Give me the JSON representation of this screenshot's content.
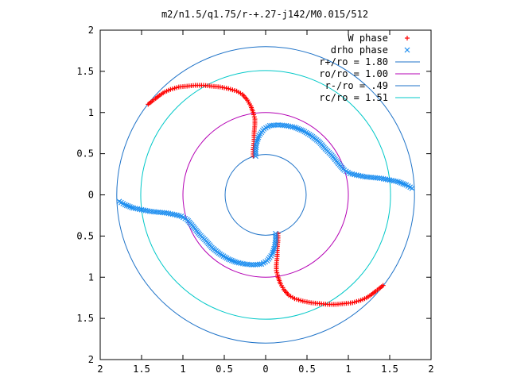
{
  "chart_data": {
    "type": "scatter",
    "title": "m2/n1.5/q1.75/r-+.27-j142/M0.015/512",
    "xlabel": "",
    "ylabel": "",
    "xlim": [
      -2,
      2
    ],
    "ylim": [
      -2,
      2
    ],
    "x_tick_labels": [
      "2",
      "1.5",
      "1",
      "0.5",
      "0",
      "0.5",
      "1",
      "1.5",
      "2"
    ],
    "y_tick_labels": [
      "2",
      "1.5",
      "1",
      "0.5",
      "0",
      "0.5",
      "1",
      "1.5",
      "2"
    ],
    "grid": false,
    "legend_position": "top-right",
    "series": [
      {
        "name": "W phase",
        "marker": "plus",
        "color": "#ff0000",
        "points": [
          [
            -0.15,
            0.47
          ],
          [
            -0.15,
            0.55
          ],
          [
            -0.14,
            0.65
          ],
          [
            -0.14,
            0.75
          ],
          [
            -0.13,
            0.85
          ],
          [
            -0.13,
            0.92
          ],
          [
            -0.15,
            1.0
          ],
          [
            -0.18,
            1.08
          ],
          [
            -0.22,
            1.15
          ],
          [
            -0.28,
            1.22
          ],
          [
            -0.35,
            1.26
          ],
          [
            -0.45,
            1.29
          ],
          [
            -0.55,
            1.31
          ],
          [
            -0.65,
            1.32
          ],
          [
            -0.75,
            1.33
          ],
          [
            -0.85,
            1.33
          ],
          [
            -0.95,
            1.32
          ],
          [
            -1.05,
            1.31
          ],
          [
            -1.15,
            1.28
          ],
          [
            -1.22,
            1.25
          ],
          [
            -1.28,
            1.21
          ],
          [
            -1.33,
            1.17
          ],
          [
            -1.37,
            1.14
          ],
          [
            -1.42,
            1.1
          ],
          [
            0.15,
            -0.47
          ],
          [
            0.15,
            -0.55
          ],
          [
            0.14,
            -0.65
          ],
          [
            0.14,
            -0.75
          ],
          [
            0.13,
            -0.85
          ],
          [
            0.13,
            -0.92
          ],
          [
            0.15,
            -1.0
          ],
          [
            0.18,
            -1.08
          ],
          [
            0.22,
            -1.15
          ],
          [
            0.28,
            -1.22
          ],
          [
            0.35,
            -1.26
          ],
          [
            0.45,
            -1.29
          ],
          [
            0.55,
            -1.31
          ],
          [
            0.65,
            -1.32
          ],
          [
            0.75,
            -1.33
          ],
          [
            0.85,
            -1.33
          ],
          [
            0.95,
            -1.32
          ],
          [
            1.05,
            -1.31
          ],
          [
            1.15,
            -1.28
          ],
          [
            1.22,
            -1.25
          ],
          [
            1.28,
            -1.21
          ],
          [
            1.33,
            -1.17
          ],
          [
            1.37,
            -1.14
          ],
          [
            1.42,
            -1.1
          ]
        ]
      },
      {
        "name": "drho phase",
        "marker": "cross",
        "color": "#1f8ff0",
        "points": [
          [
            -0.12,
            0.47
          ],
          [
            -0.12,
            0.55
          ],
          [
            -0.11,
            0.63
          ],
          [
            -0.08,
            0.72
          ],
          [
            -0.02,
            0.8
          ],
          [
            0.05,
            0.84
          ],
          [
            0.15,
            0.85
          ],
          [
            0.25,
            0.84
          ],
          [
            0.35,
            0.82
          ],
          [
            0.45,
            0.78
          ],
          [
            0.55,
            0.72
          ],
          [
            0.65,
            0.64
          ],
          [
            0.72,
            0.56
          ],
          [
            0.8,
            0.48
          ],
          [
            0.88,
            0.38
          ],
          [
            0.95,
            0.3
          ],
          [
            1.02,
            0.26
          ],
          [
            1.1,
            0.24
          ],
          [
            1.2,
            0.22
          ],
          [
            1.3,
            0.21
          ],
          [
            1.4,
            0.2
          ],
          [
            1.5,
            0.18
          ],
          [
            1.6,
            0.16
          ],
          [
            1.7,
            0.12
          ],
          [
            1.77,
            0.08
          ],
          [
            0.12,
            -0.47
          ],
          [
            0.12,
            -0.55
          ],
          [
            0.11,
            -0.63
          ],
          [
            0.08,
            -0.72
          ],
          [
            0.02,
            -0.8
          ],
          [
            -0.05,
            -0.84
          ],
          [
            -0.15,
            -0.85
          ],
          [
            -0.25,
            -0.84
          ],
          [
            -0.35,
            -0.82
          ],
          [
            -0.45,
            -0.78
          ],
          [
            -0.55,
            -0.72
          ],
          [
            -0.65,
            -0.64
          ],
          [
            -0.72,
            -0.56
          ],
          [
            -0.8,
            -0.48
          ],
          [
            -0.88,
            -0.38
          ],
          [
            -0.95,
            -0.3
          ],
          [
            -1.02,
            -0.26
          ],
          [
            -1.1,
            -0.24
          ],
          [
            -1.2,
            -0.22
          ],
          [
            -1.3,
            -0.21
          ],
          [
            -1.4,
            -0.2
          ],
          [
            -1.5,
            -0.18
          ],
          [
            -1.6,
            -0.16
          ],
          [
            -1.7,
            -0.12
          ],
          [
            -1.77,
            -0.08
          ]
        ]
      },
      {
        "name": "r+/ro = 1.80",
        "type": "circle",
        "radius": 1.8,
        "color": "#1f73c8"
      },
      {
        "name": "ro/ro = 1.00",
        "type": "circle",
        "radius": 1.0,
        "color": "#b400b4"
      },
      {
        "name": "r-/ro = .49",
        "type": "circle",
        "radius": 0.49,
        "color": "#1f73c8"
      },
      {
        "name": "rc/ro = 1.51",
        "type": "circle",
        "radius": 1.51,
        "color": "#00c8c8"
      }
    ]
  }
}
